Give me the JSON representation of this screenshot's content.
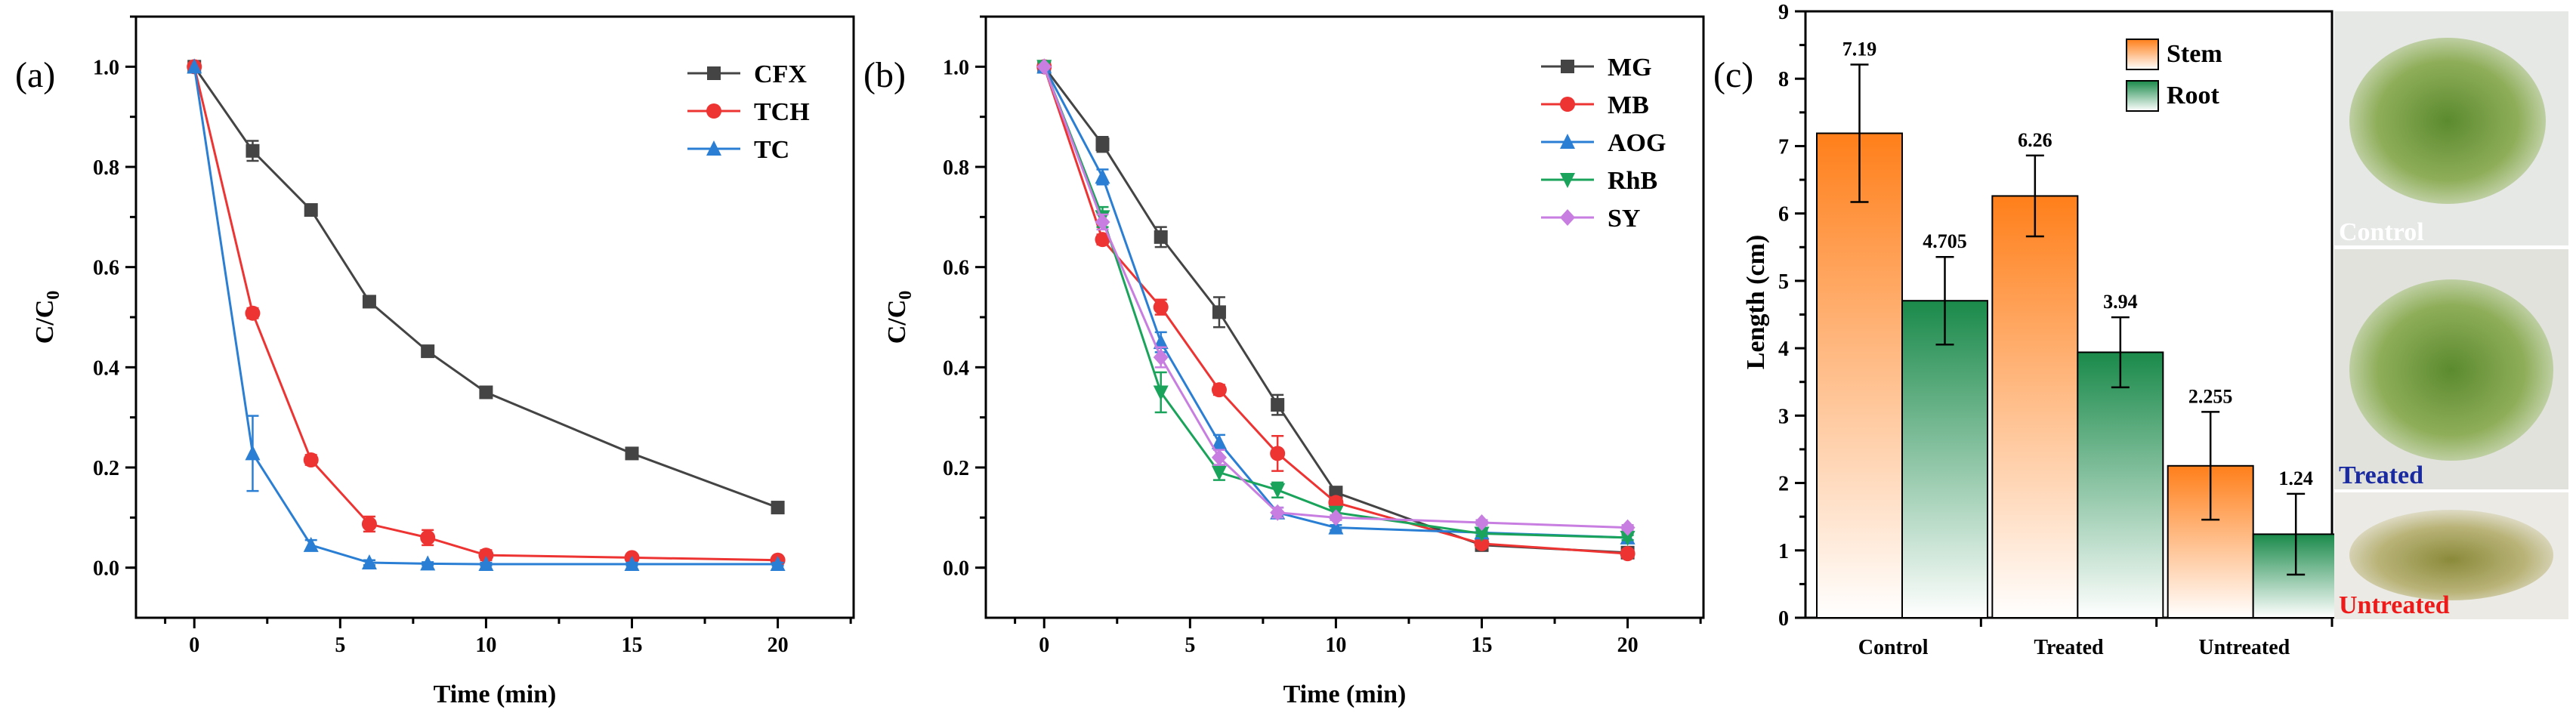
{
  "chart_data": [
    {
      "panel": "(a)",
      "type": "line",
      "xlabel": "Time (min)",
      "ylabel": "C/C0",
      "xlim": [
        -2,
        22.6
      ],
      "ylim": [
        -0.1,
        1.1
      ],
      "xticks": [
        0,
        5,
        10,
        15,
        20
      ],
      "yticks": [
        0.0,
        0.2,
        0.4,
        0.6,
        0.8,
        1.0
      ],
      "legend": "top-right",
      "series": [
        {
          "name": "CFX",
          "color": "#444444",
          "marker": "square",
          "x": [
            0,
            2,
            4,
            6,
            8,
            10,
            15,
            20
          ],
          "y": [
            1.0,
            0.832,
            0.714,
            0.531,
            0.432,
            0.35,
            0.228,
            0.12
          ],
          "err": [
            0,
            0.02,
            0.01,
            0.01,
            0.01,
            0.01,
            0.01,
            0.01
          ]
        },
        {
          "name": "TCH",
          "color": "#ee3333",
          "marker": "circle",
          "x": [
            0,
            2,
            4,
            6,
            8,
            10,
            15,
            20
          ],
          "y": [
            1.0,
            0.508,
            0.215,
            0.087,
            0.06,
            0.025,
            0.02,
            0.015
          ],
          "err": [
            0,
            0.01,
            0.01,
            0.015,
            0.015,
            0.01,
            0.005,
            0.005
          ]
        },
        {
          "name": "TC",
          "color": "#2a7fd4",
          "marker": "triangle",
          "x": [
            0,
            2,
            4,
            6,
            8,
            10,
            15,
            20
          ],
          "y": [
            1.0,
            0.228,
            0.045,
            0.01,
            0.008,
            0.007,
            0.007,
            0.007
          ],
          "err": [
            0,
            0.075,
            0.01,
            0.005,
            0.003,
            0.003,
            0.003,
            0.003
          ]
        }
      ]
    },
    {
      "panel": "(b)",
      "type": "line",
      "xlabel": "Time (min)",
      "ylabel": "C/C0",
      "xlim": [
        -2,
        22.6
      ],
      "ylim": [
        -0.1,
        1.1
      ],
      "xticks": [
        0,
        5,
        10,
        15,
        20
      ],
      "yticks": [
        0.0,
        0.2,
        0.4,
        0.6,
        0.8,
        1.0
      ],
      "legend": "top-right",
      "series": [
        {
          "name": "MG",
          "color": "#444444",
          "marker": "square",
          "x": [
            0,
            2,
            4,
            6,
            8,
            10,
            15,
            20
          ],
          "y": [
            1.0,
            0.845,
            0.66,
            0.51,
            0.325,
            0.15,
            0.045,
            0.03
          ],
          "err": [
            0,
            0.015,
            0.02,
            0.03,
            0.02,
            0.01,
            0.005,
            0.005
          ]
        },
        {
          "name": "MB",
          "color": "#ee3333",
          "marker": "circle",
          "x": [
            0,
            2,
            4,
            6,
            8,
            10,
            15,
            20
          ],
          "y": [
            1.0,
            0.655,
            0.52,
            0.355,
            0.228,
            0.13,
            0.048,
            0.028
          ],
          "err": [
            0,
            0.01,
            0.015,
            0.01,
            0.035,
            0.01,
            0.005,
            0.005
          ]
        },
        {
          "name": "AOG",
          "color": "#2a7fd4",
          "marker": "triangle",
          "x": [
            0,
            2,
            4,
            6,
            8,
            10,
            15,
            20
          ],
          "y": [
            1.0,
            0.78,
            0.45,
            0.25,
            0.11,
            0.08,
            0.07,
            0.06
          ],
          "err": [
            0,
            0.015,
            0.02,
            0.015,
            0.01,
            0.005,
            0.005,
            0.005
          ]
        },
        {
          "name": "RhB",
          "color": "#1aa35a",
          "marker": "triangle-down",
          "x": [
            0,
            2,
            4,
            6,
            8,
            10,
            15,
            20
          ],
          "y": [
            1.0,
            0.7,
            0.35,
            0.19,
            0.155,
            0.11,
            0.068,
            0.06
          ],
          "err": [
            0,
            0.02,
            0.04,
            0.015,
            0.015,
            0.01,
            0.005,
            0.005
          ]
        },
        {
          "name": "SY",
          "color": "#c77ee0",
          "marker": "diamond",
          "x": [
            0,
            2,
            4,
            6,
            8,
            10,
            15,
            20
          ],
          "y": [
            1.0,
            0.69,
            0.42,
            0.22,
            0.11,
            0.1,
            0.09,
            0.08
          ],
          "err": [
            0,
            0.015,
            0.02,
            0.015,
            0.01,
            0.005,
            0.005,
            0.005
          ]
        }
      ]
    },
    {
      "panel": "(c)",
      "type": "bar",
      "ylabel": "Length (cm)",
      "ylim": [
        0,
        9
      ],
      "yticks": [
        0,
        1,
        2,
        3,
        4,
        5,
        6,
        7,
        8,
        9
      ],
      "categories": [
        "Control",
        "Treated",
        "Untreated"
      ],
      "legend": "top",
      "series": [
        {
          "name": "Stem",
          "color": "#ff7f1a",
          "values": [
            7.19,
            6.26,
            2.255
          ],
          "labels": [
            "7.19",
            "6.26",
            "2.255"
          ],
          "err": [
            1.02,
            0.6,
            0.8
          ]
        },
        {
          "name": "Root",
          "color": "#1a8a4a",
          "values": [
            4.705,
            3.94,
            1.24
          ],
          "labels": [
            "4.705",
            "3.94",
            "1.24"
          ],
          "err": [
            0.65,
            0.52,
            0.6
          ]
        }
      ],
      "photos": [
        {
          "label": "Control",
          "color": "#ffffff"
        },
        {
          "label": "Treated",
          "color": "#1a2aa0"
        },
        {
          "label": "Untreated",
          "color": "#ee1a1a"
        }
      ]
    }
  ]
}
